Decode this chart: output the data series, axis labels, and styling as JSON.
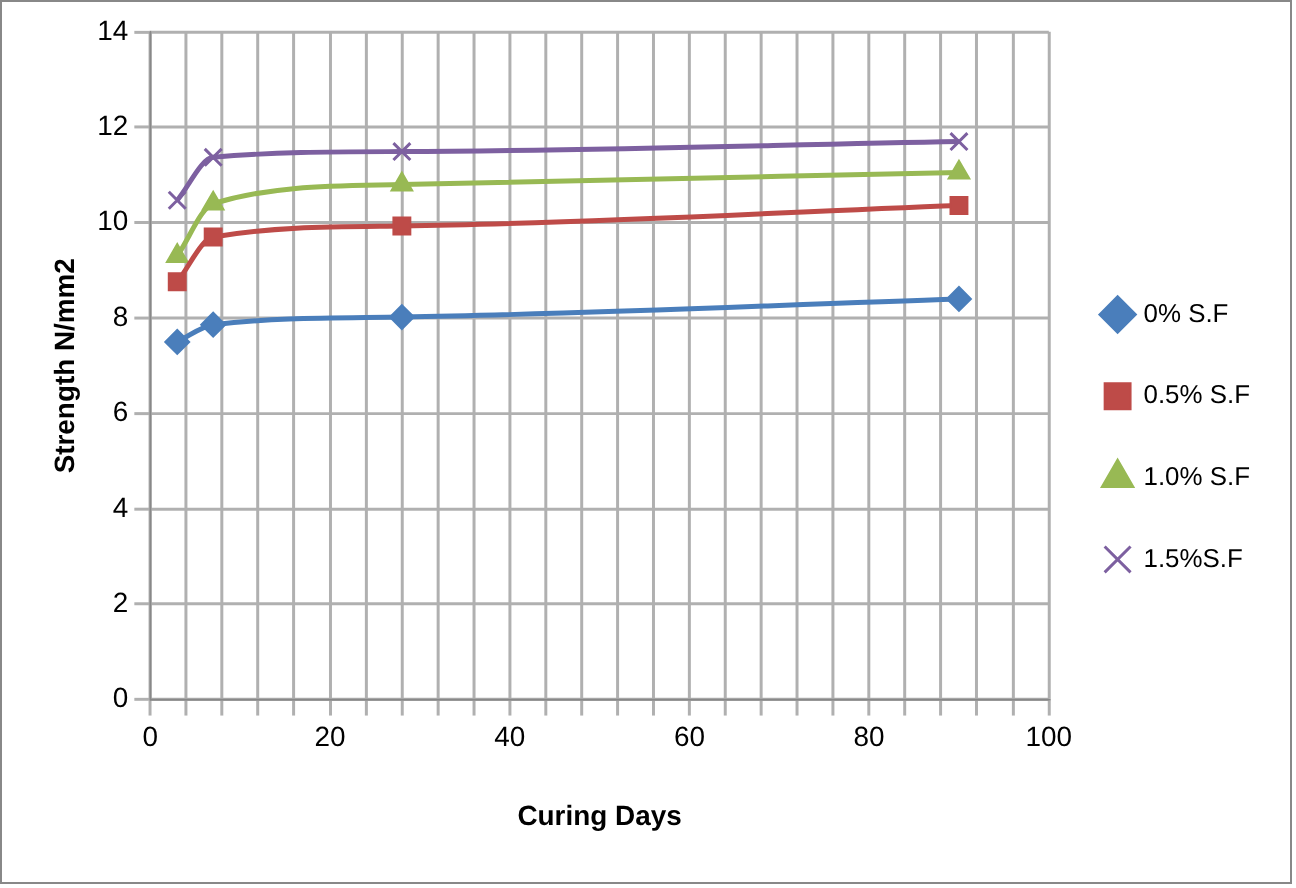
{
  "chart_data": {
    "type": "line",
    "xlabel": "Curing Days",
    "ylabel": "Strength N/mm2",
    "x": [
      3,
      7,
      28,
      90
    ],
    "series": [
      {
        "name": "0% S.F",
        "color": "#4a7ebb",
        "marker": "diamond",
        "values": [
          7.5,
          7.86,
          8.02,
          8.4
        ]
      },
      {
        "name": "0.5% S.F",
        "color": "#be4b48",
        "marker": "square",
        "values": [
          8.76,
          9.7,
          9.93,
          10.36
        ]
      },
      {
        "name": "1.0% S.F",
        "color": "#98b954",
        "marker": "triangle",
        "values": [
          9.3,
          10.4,
          10.8,
          11.05
        ]
      },
      {
        "name": "1.5%S.F",
        "color": "#7d60a0",
        "marker": "cross",
        "values": [
          10.47,
          11.37,
          11.49,
          11.7
        ]
      }
    ],
    "xlim": [
      0,
      100
    ],
    "xticks": [
      0,
      {
        "value": 4,
        "label": null
      },
      {
        "value": 8,
        "label": null
      },
      {
        "value": 12,
        "label": null
      },
      {
        "value": 16,
        "label": null
      },
      20,
      {
        "value": 24,
        "label": null
      },
      {
        "value": 28,
        "label": null
      },
      {
        "value": 32,
        "label": null
      },
      {
        "value": 36,
        "label": null
      },
      40,
      {
        "value": 44,
        "label": null
      },
      {
        "value": 48,
        "label": null
      },
      {
        "value": 52,
        "label": null
      },
      {
        "value": 56,
        "label": null
      },
      60,
      {
        "value": 64,
        "label": null
      },
      {
        "value": 68,
        "label": null
      },
      {
        "value": 72,
        "label": null
      },
      {
        "value": 76,
        "label": null
      },
      80,
      {
        "value": 84,
        "label": null
      },
      {
        "value": 88,
        "label": null
      },
      {
        "value": 92,
        "label": null
      },
      {
        "value": 96,
        "label": null
      },
      100
    ],
    "ylim": [
      0,
      14
    ],
    "yticks": [
      0,
      2,
      4,
      6,
      8,
      10,
      12,
      14
    ],
    "grid": true,
    "legend": "right"
  }
}
